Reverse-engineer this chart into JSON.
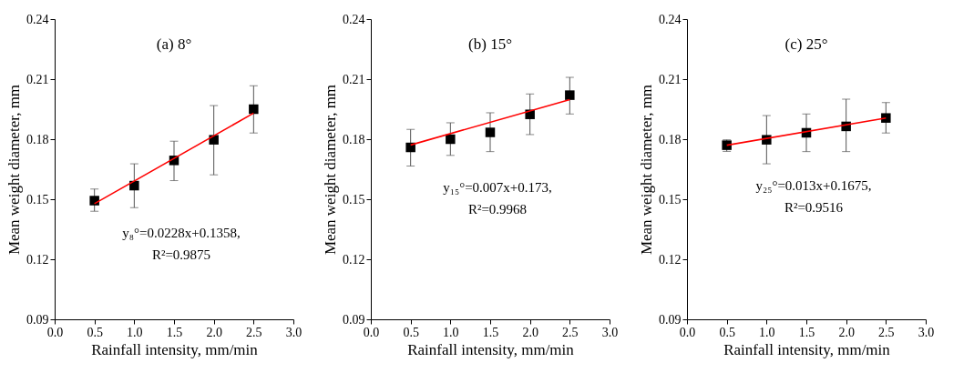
{
  "chart_data": [
    {
      "type": "scatter",
      "title": "(a) 8°",
      "xlabel": "Rainfall intensity, mm/min",
      "ylabel": "Mean weight diameter, mm",
      "xlim": [
        0,
        3
      ],
      "xticks": [
        {
          "value": 0,
          "label": "0.0"
        },
        {
          "value": 0.5,
          "label": "0.5"
        },
        {
          "value": 1,
          "label": "1.0"
        },
        {
          "value": 1.5,
          "label": "1.5"
        },
        {
          "value": 2,
          "label": "2.0"
        },
        {
          "value": 2.5,
          "label": "2.5"
        },
        {
          "value": 3,
          "label": "3.0"
        }
      ],
      "ylim": [
        0.09,
        0.24
      ],
      "yticks": [
        0.09,
        0.12,
        0.15,
        0.18,
        0.21,
        0.24
      ],
      "grid": false,
      "annotations": [
        "y₈°=0.0228x+0.1358,",
        "R²=0.9875"
      ],
      "series": [
        {
          "marker": "square",
          "color": "#000000",
          "x": [
            0.5,
            1,
            1.5,
            2,
            2.5
          ],
          "values": [
            0.1493,
            0.1568,
            0.1694,
            0.1797,
            0.195
          ],
          "errors": [
            [
              0.144,
              0.1551
            ],
            [
              0.1458,
              0.1677
            ],
            [
              0.1593,
              0.179
            ],
            [
              0.1622,
              0.1968
            ],
            [
              0.1831,
              0.2067
            ]
          ]
        },
        {
          "type": "line",
          "color": "#ff0000",
          "x": [
            0.5,
            2.5
          ],
          "values": [
            0.1478,
            0.193
          ]
        }
      ]
    },
    {
      "type": "scatter",
      "title": "(b) 15°",
      "xlabel": "Rainfall intensity, mm/min",
      "ylabel": "Mean weight diameter, mm",
      "xlim": [
        0,
        3
      ],
      "xticks": [
        {
          "value": 0,
          "label": "0.0"
        },
        {
          "value": 0.5,
          "label": "0.5"
        },
        {
          "value": 1,
          "label": "1.0"
        },
        {
          "value": 1.5,
          "label": "1.5"
        },
        {
          "value": 2,
          "label": "2.0"
        },
        {
          "value": 2.5,
          "label": "2.5"
        },
        {
          "value": 3,
          "label": "3.0"
        }
      ],
      "ylim": [
        0.09,
        0.24
      ],
      "yticks": [
        0.09,
        0.12,
        0.15,
        0.18,
        0.21,
        0.24
      ],
      "grid": false,
      "annotations": [
        "y₁₅°=0.007x+0.173,",
        "R²=0.9968"
      ],
      "series": [
        {
          "marker": "square",
          "color": "#000000",
          "x": [
            0.5,
            1,
            1.5,
            2,
            2.5
          ],
          "values": [
            0.1759,
            0.18,
            0.1834,
            0.1924,
            0.202
          ],
          "errors": [
            [
              0.1666,
              0.1849
            ],
            [
              0.1719,
              0.1882
            ],
            [
              0.1738,
              0.1932
            ],
            [
              0.1823,
              0.2026
            ],
            [
              0.1926,
              0.2109
            ]
          ]
        },
        {
          "type": "line",
          "color": "#ff0000",
          "x": [
            0.5,
            2.5
          ],
          "values": [
            0.1771,
            0.1998
          ]
        }
      ]
    },
    {
      "type": "scatter",
      "title": "(c) 25°",
      "xlabel": "Rainfall intensity, mm/min",
      "ylabel": "Mean weight diameter, mm",
      "xlim": [
        0,
        3
      ],
      "xticks": [
        {
          "value": 0,
          "label": "0.0"
        },
        {
          "value": 0.5,
          "label": "0.5"
        },
        {
          "value": 1,
          "label": "1.0"
        },
        {
          "value": 1.5,
          "label": "1.5"
        },
        {
          "value": 2,
          "label": "2.0"
        },
        {
          "value": 2.5,
          "label": "2.5"
        },
        {
          "value": 3,
          "label": "3.0"
        }
      ],
      "ylim": [
        0.09,
        0.24
      ],
      "yticks": [
        0.09,
        0.12,
        0.15,
        0.18,
        0.21,
        0.24
      ],
      "grid": false,
      "annotations": [
        "y₂₅°=0.013x+0.1675,",
        "R²=0.9516"
      ],
      "series": [
        {
          "marker": "square",
          "color": "#000000",
          "x": [
            0.5,
            1,
            1.5,
            2,
            2.5
          ],
          "values": [
            0.177,
            0.1797,
            0.1832,
            0.1864,
            0.1906
          ],
          "errors": [
            [
              0.1739,
              0.1797
            ],
            [
              0.1677,
              0.1918
            ],
            [
              0.1738,
              0.1926
            ],
            [
              0.1738,
              0.2
            ],
            [
              0.1831,
              0.1983
            ]
          ]
        },
        {
          "type": "line",
          "color": "#ff0000",
          "x": [
            0.5,
            2.5
          ],
          "values": [
            0.177,
            0.1906
          ]
        }
      ]
    }
  ]
}
